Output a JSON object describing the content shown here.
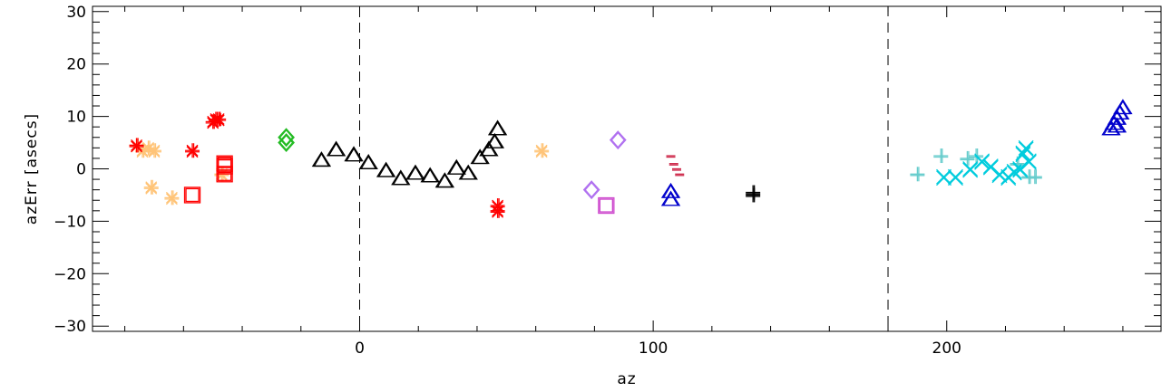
{
  "chart_data": {
    "type": "scatter",
    "title": "",
    "xlabel": "az",
    "ylabel": "azErr [asecs]",
    "xlim": [
      -91,
      273
    ],
    "ylim": [
      -31,
      31
    ],
    "xticks": [
      0,
      100,
      200
    ],
    "xtick_labels": [
      "0",
      "100",
      "200"
    ],
    "yticks": [
      -30,
      -20,
      -10,
      0,
      10,
      20,
      30
    ],
    "ytick_labels": [
      "−30",
      "−20",
      "−10",
      "0",
      "10",
      "20",
      "30"
    ],
    "reference_lines_x": [
      0,
      180
    ],
    "grid": false,
    "series": [
      {
        "marker": "asterisk",
        "color": "#ffc478",
        "points": [
          [
            -76,
            4.5
          ],
          [
            -74,
            3.5
          ],
          [
            -72,
            4
          ],
          [
            -70,
            3.5
          ],
          [
            -71,
            -3.5
          ],
          [
            -64,
            -5.5
          ],
          [
            -47,
            -1
          ]
        ]
      },
      {
        "marker": "asterisk",
        "color": "#ff0000",
        "points": [
          [
            -76,
            4.5
          ],
          [
            -57,
            3.5
          ],
          [
            -50,
            9
          ],
          [
            -49,
            9.5
          ],
          [
            -48,
            9.5
          ],
          [
            47,
            -7
          ],
          [
            47,
            -8
          ]
        ]
      },
      {
        "marker": "square",
        "color": "#ff0000",
        "points": [
          [
            -57,
            -5
          ],
          [
            -46,
            1
          ],
          [
            -46,
            -1
          ],
          [
            -46,
            0.5
          ]
        ]
      },
      {
        "marker": "diamond",
        "color": "#22bb22",
        "points": [
          [
            -25,
            6
          ],
          [
            -25,
            5
          ]
        ]
      },
      {
        "marker": "triangle",
        "color": "#000000",
        "points": [
          [
            -13,
            1.5
          ],
          [
            -8,
            3.5
          ],
          [
            -2,
            2.5
          ],
          [
            3,
            1
          ],
          [
            9,
            -0.5
          ],
          [
            14,
            -2
          ],
          [
            19,
            -1
          ],
          [
            24,
            -1.5
          ],
          [
            29,
            -2.5
          ],
          [
            33,
            0
          ],
          [
            37,
            -1
          ],
          [
            41,
            2
          ],
          [
            44,
            3.5
          ],
          [
            46,
            5
          ],
          [
            47,
            7.5
          ]
        ]
      },
      {
        "marker": "asterisk",
        "color": "#ffc478",
        "points": [
          [
            62,
            3.5
          ]
        ]
      },
      {
        "marker": "diamond",
        "color": "#b070f0",
        "points": [
          [
            79,
            -4
          ],
          [
            88,
            5.5
          ]
        ]
      },
      {
        "marker": "square",
        "color": "#cc44cc",
        "points": [
          [
            84,
            -7
          ]
        ]
      },
      {
        "marker": "triangle",
        "color": "#0000cc",
        "points": [
          [
            106,
            -4.5
          ],
          [
            106,
            -6
          ]
        ]
      },
      {
        "marker": "dash",
        "color": "#cc2244",
        "points": [
          [
            106,
            2.5
          ],
          [
            107,
            1
          ],
          [
            108,
            0
          ],
          [
            109,
            -1
          ]
        ]
      },
      {
        "marker": "plus",
        "color": "#000000",
        "points": [
          [
            134,
            -4.5
          ],
          [
            134,
            -5
          ]
        ]
      },
      {
        "marker": "plus",
        "color": "#66cccc",
        "points": [
          [
            190,
            -1
          ],
          [
            198,
            2.5
          ],
          [
            207,
            2
          ],
          [
            210,
            2.5
          ],
          [
            224,
            1
          ],
          [
            228,
            -1.5
          ],
          [
            230,
            -1.5
          ]
        ]
      },
      {
        "marker": "x",
        "color": "#00ccdd",
        "points": [
          [
            199,
            -1.5
          ],
          [
            203,
            -1.5
          ],
          [
            208,
            0
          ],
          [
            212,
            1.5
          ],
          [
            215,
            0.5
          ],
          [
            218,
            -1
          ],
          [
            221,
            -1.5
          ],
          [
            223,
            -0.5
          ],
          [
            225,
            0
          ],
          [
            226,
            3
          ],
          [
            227,
            4
          ],
          [
            228,
            1.5
          ]
        ]
      },
      {
        "marker": "triangle",
        "color": "#0000cc",
        "points": [
          [
            256,
            7.5
          ],
          [
            257,
            8.5
          ],
          [
            258,
            9.5
          ],
          [
            259,
            10.5
          ],
          [
            260,
            11.5
          ],
          [
            258,
            8
          ]
        ]
      }
    ]
  }
}
